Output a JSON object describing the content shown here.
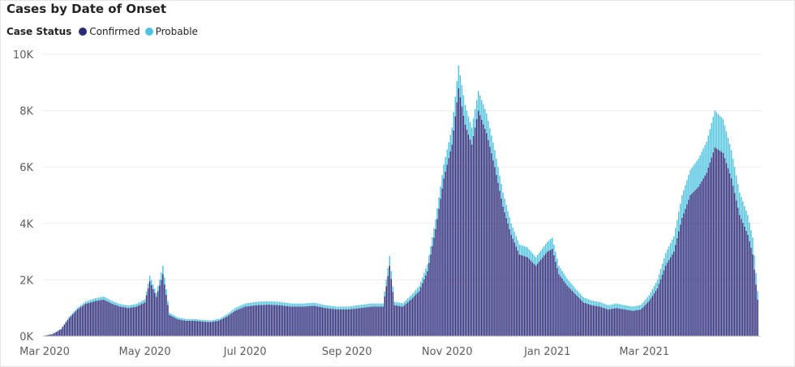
{
  "header": {
    "title": "Cases by Date of Onset"
  },
  "legend": {
    "title": "Case Status",
    "items": [
      {
        "label": "Confirmed",
        "color": "#2b2a7a"
      },
      {
        "label": "Probable",
        "color": "#4fc3e0"
      }
    ]
  },
  "chart_data": {
    "type": "bar",
    "stacked": true,
    "title": "Cases by Date of Onset",
    "xlabel": "",
    "ylabel": "",
    "ylim": [
      0,
      10000
    ],
    "y_ticks": [
      {
        "value": 0,
        "label": "0K"
      },
      {
        "value": 2000,
        "label": "2K"
      },
      {
        "value": 4000,
        "label": "4K"
      },
      {
        "value": 6000,
        "label": "6K"
      },
      {
        "value": 8000,
        "label": "8K"
      },
      {
        "value": 10000,
        "label": "10K"
      }
    ],
    "x_ticks": [
      {
        "date": "2020-03-01",
        "label": "Mar 2020"
      },
      {
        "date": "2020-05-01",
        "label": "May 2020"
      },
      {
        "date": "2020-07-01",
        "label": "Jul 2020"
      },
      {
        "date": "2020-09-01",
        "label": "Sep 2020"
      },
      {
        "date": "2020-11-01",
        "label": "Nov 2020"
      },
      {
        "date": "2021-01-01",
        "label": "Jan 2021"
      },
      {
        "date": "2021-03-01",
        "label": "Mar 2021"
      }
    ],
    "grid": true,
    "legend_position": "top-left",
    "series": [
      {
        "name": "Confirmed",
        "color": "#2b2a7a",
        "points": [
          [
            "2020-03-01",
            20
          ],
          [
            "2020-03-06",
            80
          ],
          [
            "2020-03-11",
            250
          ],
          [
            "2020-03-16",
            650
          ],
          [
            "2020-03-21",
            950
          ],
          [
            "2020-03-26",
            1150
          ],
          [
            "2020-04-01",
            1250
          ],
          [
            "2020-04-06",
            1300
          ],
          [
            "2020-04-11",
            1150
          ],
          [
            "2020-04-16",
            1050
          ],
          [
            "2020-04-21",
            1000
          ],
          [
            "2020-04-26",
            1050
          ],
          [
            "2020-05-01",
            1200
          ],
          [
            "2020-05-04",
            1950
          ],
          [
            "2020-05-08",
            1400
          ],
          [
            "2020-05-12",
            2200
          ],
          [
            "2020-05-16",
            750
          ],
          [
            "2020-05-21",
            600
          ],
          [
            "2020-05-26",
            550
          ],
          [
            "2020-05-31",
            550
          ],
          [
            "2020-06-05",
            520
          ],
          [
            "2020-06-10",
            500
          ],
          [
            "2020-06-15",
            550
          ],
          [
            "2020-06-20",
            700
          ],
          [
            "2020-06-25",
            900
          ],
          [
            "2020-07-01",
            1050
          ],
          [
            "2020-07-08",
            1100
          ],
          [
            "2020-07-15",
            1120
          ],
          [
            "2020-07-22",
            1100
          ],
          [
            "2020-07-29",
            1050
          ],
          [
            "2020-08-05",
            1050
          ],
          [
            "2020-08-12",
            1080
          ],
          [
            "2020-08-19",
            1000
          ],
          [
            "2020-08-26",
            950
          ],
          [
            "2020-09-02",
            950
          ],
          [
            "2020-09-09",
            1000
          ],
          [
            "2020-09-16",
            1050
          ],
          [
            "2020-09-23",
            1050
          ],
          [
            "2020-09-27",
            2500
          ],
          [
            "2020-09-30",
            1100
          ],
          [
            "2020-10-05",
            1050
          ],
          [
            "2020-10-10",
            1300
          ],
          [
            "2020-10-15",
            1600
          ],
          [
            "2020-10-20",
            2300
          ],
          [
            "2020-10-25",
            3800
          ],
          [
            "2020-10-30",
            5600
          ],
          [
            "2020-11-04",
            6800
          ],
          [
            "2020-11-08",
            8800
          ],
          [
            "2020-11-12",
            7500
          ],
          [
            "2020-11-16",
            6800
          ],
          [
            "2020-11-20",
            8000
          ],
          [
            "2020-11-25",
            7200
          ],
          [
            "2020-11-30",
            6000
          ],
          [
            "2020-12-05",
            4600
          ],
          [
            "2020-12-10",
            3600
          ],
          [
            "2020-12-15",
            2900
          ],
          [
            "2020-12-20",
            2800
          ],
          [
            "2020-12-25",
            2500
          ],
          [
            "2021-01-01",
            3000
          ],
          [
            "2021-01-04",
            3100
          ],
          [
            "2021-01-08",
            2200
          ],
          [
            "2021-01-13",
            1800
          ],
          [
            "2021-01-18",
            1500
          ],
          [
            "2021-01-23",
            1200
          ],
          [
            "2021-01-28",
            1100
          ],
          [
            "2021-02-02",
            1050
          ],
          [
            "2021-02-07",
            950
          ],
          [
            "2021-02-12",
            1000
          ],
          [
            "2021-02-17",
            950
          ],
          [
            "2021-02-22",
            900
          ],
          [
            "2021-02-27",
            950
          ],
          [
            "2021-03-04",
            1250
          ],
          [
            "2021-03-09",
            1700
          ],
          [
            "2021-03-14",
            2500
          ],
          [
            "2021-03-19",
            3000
          ],
          [
            "2021-03-24",
            4200
          ],
          [
            "2021-03-29",
            5000
          ],
          [
            "2021-04-03",
            5300
          ],
          [
            "2021-04-08",
            5800
          ],
          [
            "2021-04-13",
            6700
          ],
          [
            "2021-04-18",
            6500
          ],
          [
            "2021-04-23",
            5600
          ],
          [
            "2021-04-28",
            4300
          ],
          [
            "2021-05-03",
            3600
          ],
          [
            "2021-05-06",
            2900
          ],
          [
            "2021-05-09",
            1300
          ]
        ]
      },
      {
        "name": "Probable",
        "color": "#4fc3e0",
        "points": [
          [
            "2020-03-01",
            0
          ],
          [
            "2020-03-06",
            5
          ],
          [
            "2020-03-11",
            15
          ],
          [
            "2020-03-16",
            40
          ],
          [
            "2020-03-21",
            60
          ],
          [
            "2020-03-26",
            80
          ],
          [
            "2020-04-01",
            100
          ],
          [
            "2020-04-06",
            110
          ],
          [
            "2020-04-11",
            100
          ],
          [
            "2020-04-16",
            90
          ],
          [
            "2020-04-21",
            90
          ],
          [
            "2020-04-26",
            100
          ],
          [
            "2020-05-01",
            110
          ],
          [
            "2020-05-04",
            200
          ],
          [
            "2020-05-08",
            130
          ],
          [
            "2020-05-12",
            300
          ],
          [
            "2020-05-16",
            80
          ],
          [
            "2020-05-21",
            70
          ],
          [
            "2020-05-26",
            60
          ],
          [
            "2020-05-31",
            60
          ],
          [
            "2020-06-05",
            60
          ],
          [
            "2020-06-10",
            60
          ],
          [
            "2020-06-15",
            60
          ],
          [
            "2020-06-20",
            80
          ],
          [
            "2020-06-25",
            100
          ],
          [
            "2020-07-01",
            110
          ],
          [
            "2020-07-08",
            120
          ],
          [
            "2020-07-15",
            120
          ],
          [
            "2020-07-22",
            120
          ],
          [
            "2020-07-29",
            110
          ],
          [
            "2020-08-05",
            110
          ],
          [
            "2020-08-12",
            110
          ],
          [
            "2020-08-19",
            100
          ],
          [
            "2020-08-26",
            100
          ],
          [
            "2020-09-02",
            100
          ],
          [
            "2020-09-09",
            110
          ],
          [
            "2020-09-16",
            110
          ],
          [
            "2020-09-23",
            110
          ],
          [
            "2020-09-27",
            350
          ],
          [
            "2020-09-30",
            120
          ],
          [
            "2020-10-05",
            120
          ],
          [
            "2020-10-10",
            150
          ],
          [
            "2020-10-15",
            180
          ],
          [
            "2020-10-20",
            250
          ],
          [
            "2020-10-25",
            350
          ],
          [
            "2020-10-30",
            500
          ],
          [
            "2020-11-04",
            600
          ],
          [
            "2020-11-08",
            800
          ],
          [
            "2020-11-12",
            700
          ],
          [
            "2020-11-16",
            600
          ],
          [
            "2020-11-20",
            700
          ],
          [
            "2020-11-25",
            700
          ],
          [
            "2020-11-30",
            600
          ],
          [
            "2020-12-05",
            500
          ],
          [
            "2020-12-10",
            400
          ],
          [
            "2020-12-15",
            350
          ],
          [
            "2020-12-20",
            350
          ],
          [
            "2020-12-25",
            300
          ],
          [
            "2021-01-01",
            350
          ],
          [
            "2021-01-04",
            400
          ],
          [
            "2021-01-08",
            300
          ],
          [
            "2021-01-13",
            250
          ],
          [
            "2021-01-18",
            200
          ],
          [
            "2021-01-23",
            180
          ],
          [
            "2021-01-28",
            170
          ],
          [
            "2021-02-02",
            160
          ],
          [
            "2021-02-07",
            150
          ],
          [
            "2021-02-12",
            160
          ],
          [
            "2021-02-17",
            150
          ],
          [
            "2021-02-22",
            150
          ],
          [
            "2021-02-27",
            160
          ],
          [
            "2021-03-04",
            200
          ],
          [
            "2021-03-09",
            300
          ],
          [
            "2021-03-14",
            450
          ],
          [
            "2021-03-19",
            550
          ],
          [
            "2021-03-24",
            800
          ],
          [
            "2021-03-29",
            900
          ],
          [
            "2021-04-03",
            1000
          ],
          [
            "2021-04-08",
            1100
          ],
          [
            "2021-04-13",
            1300
          ],
          [
            "2021-04-18",
            1200
          ],
          [
            "2021-04-23",
            1000
          ],
          [
            "2021-04-28",
            800
          ],
          [
            "2021-05-03",
            700
          ],
          [
            "2021-05-06",
            600
          ],
          [
            "2021-05-09",
            300
          ]
        ]
      }
    ]
  }
}
